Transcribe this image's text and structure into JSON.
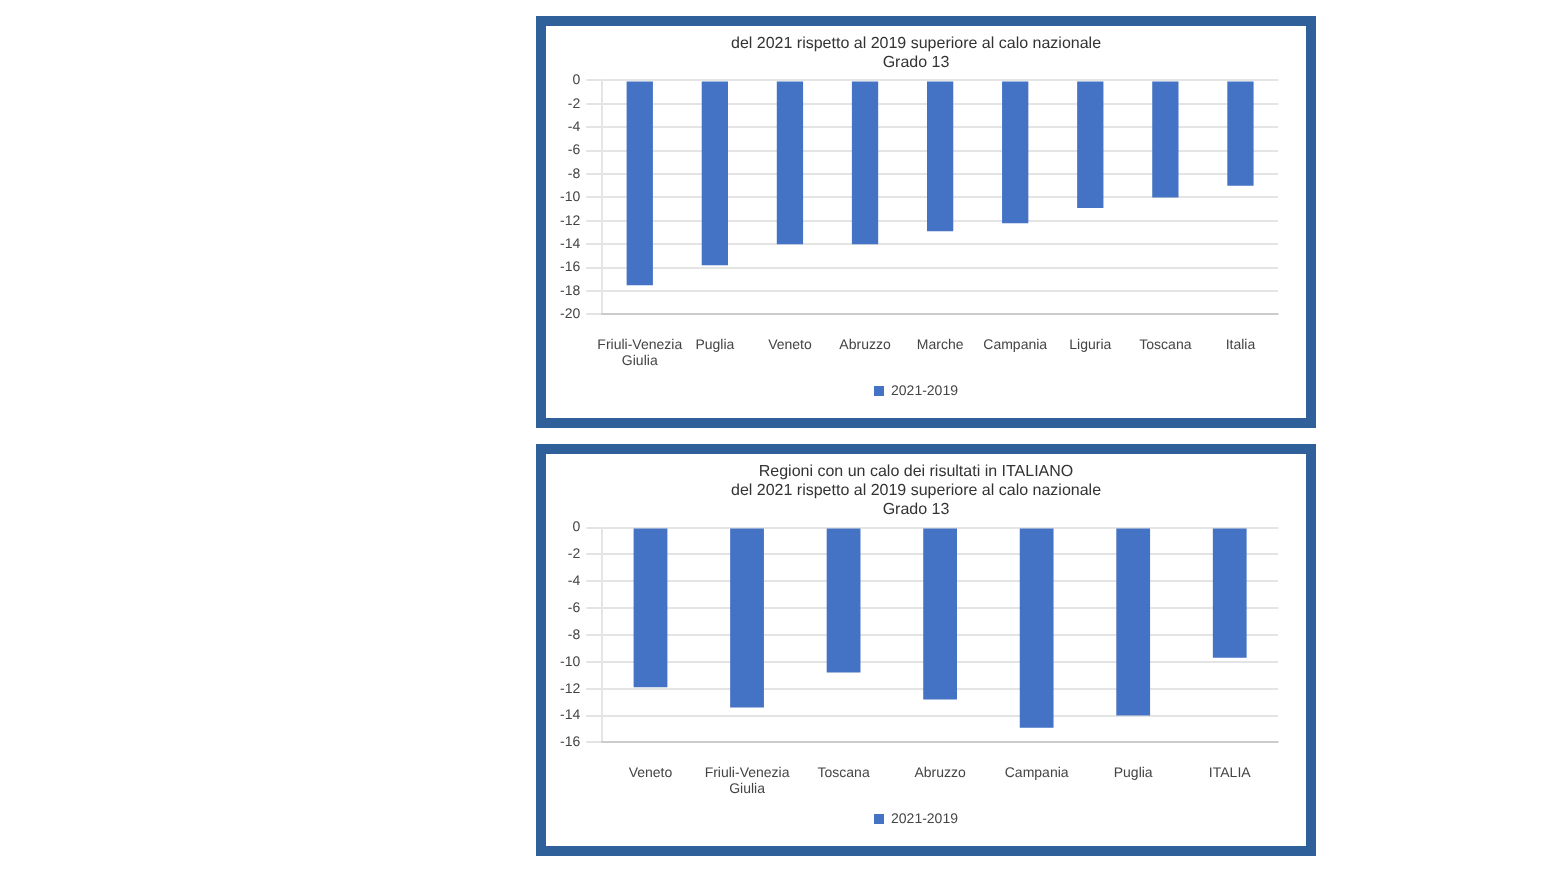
{
  "chart_data": [
    {
      "type": "bar",
      "title": [
        "del 2021 rispetto al 2019 superiore al calo nazionale",
        "Grado 13"
      ],
      "categories": [
        "Friuli-Venezia Giulia",
        "Puglia",
        "Veneto",
        "Abruzzo",
        "Marche",
        "Campania",
        "Liguria",
        "Toscana",
        "Italia"
      ],
      "series": [
        {
          "name": "2021-2019",
          "color": "#4472c4",
          "values": [
            -17.5,
            -15.8,
            -14,
            -14,
            -12.9,
            -12.2,
            -10.9,
            -10,
            -9
          ]
        }
      ],
      "ylim": [
        -20,
        0
      ],
      "yticks": [
        -20,
        -18,
        -16,
        -14,
        -12,
        -10,
        -8,
        -6,
        -4,
        -2,
        0
      ],
      "grid": "y",
      "legend": "bottom"
    },
    {
      "type": "bar",
      "title": [
        "Regioni con un calo dei risultati in ITALIANO",
        "del 2021 rispetto al 2019 superiore al calo nazionale",
        "Grado 13"
      ],
      "categories": [
        "Veneto",
        "Friuli-Venezia Giulia",
        "Toscana",
        "Abruzzo",
        "Campania",
        "Puglia",
        "ITALIA"
      ],
      "series": [
        {
          "name": "2021-2019",
          "color": "#4472c4",
          "values": [
            -11.9,
            -13.4,
            -10.8,
            -12.8,
            -14.9,
            -14,
            -9.7
          ]
        }
      ],
      "ylim": [
        -16,
        0
      ],
      "yticks": [
        -16,
        -14,
        -12,
        -10,
        -8,
        -6,
        -4,
        -2,
        0
      ],
      "grid": "y",
      "legend": "bottom"
    }
  ]
}
